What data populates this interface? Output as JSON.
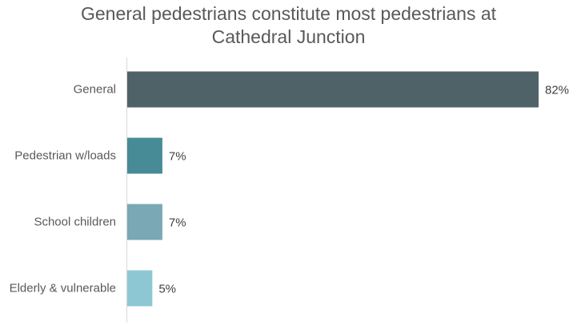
{
  "chart_data": {
    "type": "bar",
    "orientation": "horizontal",
    "title_lines": [
      "General pedestrians constitute most pedestrians at",
      "Cathedral Junction"
    ],
    "categories": [
      "General",
      "Pedestrian w/loads",
      "School children",
      "Elderly & vulnerable"
    ],
    "values": [
      82,
      7,
      7,
      5
    ],
    "value_labels": [
      "82%",
      "7%",
      "7%",
      "5%"
    ],
    "unit": "%",
    "xlim": [
      0,
      82
    ],
    "colors": [
      "#4f6268",
      "#478b96",
      "#7aa8b4",
      "#8ec7d4"
    ],
    "grid": false,
    "legend": "none"
  }
}
